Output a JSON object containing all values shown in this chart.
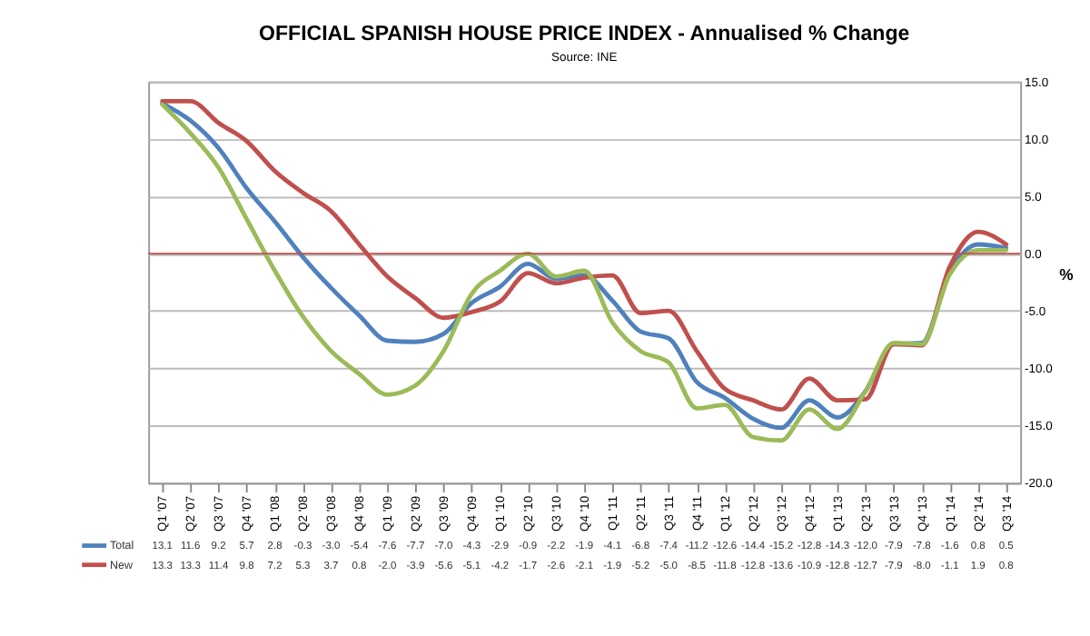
{
  "chart_data": {
    "type": "line",
    "title": "OFFICIAL SPANISH HOUSE PRICE INDEX - Annualised % Change",
    "subtitle": "Source: INE",
    "ylabel": "%",
    "categories": [
      "Q1 '07",
      "Q2 '07",
      "Q3 '07",
      "Q4 '07",
      "Q1 '08",
      "Q2 '08",
      "Q3 '08",
      "Q4 '08",
      "Q1 '09",
      "Q2 '09",
      "Q3 '09",
      "Q4 '09",
      "Q1 '10",
      "Q2 '10",
      "Q3 '10",
      "Q4 '10",
      "Q1 '11",
      "Q2 '11",
      "Q3 '11",
      "Q4 '11",
      "Q1 '12",
      "Q2 '12",
      "Q3 '12",
      "Q4 '12",
      "Q1 '13",
      "Q2 '13",
      "Q3 '13",
      "Q4 '13",
      "Q1 '14",
      "Q2 '14",
      "Q3 '14"
    ],
    "series": [
      {
        "name": "Total",
        "color": "#4f81bd",
        "values": [
          13.1,
          11.6,
          9.2,
          5.7,
          2.8,
          -0.3,
          -3.0,
          -5.4,
          -7.6,
          -7.7,
          -7.0,
          -4.3,
          -2.9,
          -0.9,
          -2.2,
          -1.9,
          -4.1,
          -6.8,
          -7.4,
          -11.2,
          -12.6,
          -14.4,
          -15.2,
          -12.8,
          -14.3,
          -12.0,
          -7.9,
          -7.8,
          -1.6,
          0.8,
          0.5
        ],
        "value_labels": [
          "13.1",
          "11.6",
          "9.2",
          "5.7",
          "2.8",
          "-0.3",
          "-3.0",
          "-5.4",
          "-7.6",
          "-7.7",
          "-7.0",
          "-4.3",
          "-2.9",
          "-0.9",
          "-2.2",
          "-1.9",
          "-4.1",
          "-6.8",
          "-7.4",
          "-11.2",
          "-12.6",
          "-14.4",
          "-15.2",
          "-12.8",
          "-14.3",
          "-12.0",
          "-7.9",
          "-7.8",
          "-1.6",
          "0.8",
          "0.5"
        ]
      },
      {
        "name": "New",
        "color": "#c0504d",
        "values": [
          13.3,
          13.3,
          11.4,
          9.8,
          7.2,
          5.3,
          3.7,
          0.8,
          -2.0,
          -3.9,
          -5.6,
          -5.1,
          -4.2,
          -1.7,
          -2.6,
          -2.1,
          -1.9,
          -5.2,
          -5.0,
          -8.5,
          -11.8,
          -12.8,
          -13.6,
          -10.9,
          -12.8,
          -12.7,
          -7.9,
          -8.0,
          -1.1,
          1.9,
          0.8
        ],
        "value_labels": [
          "13.3",
          "13.3",
          "11.4",
          "9.8",
          "7.2",
          "5.3",
          "3.7",
          "0.8",
          "-2.0",
          "-3.9",
          "-5.6",
          "-5.1",
          "-4.2",
          "-1.7",
          "-2.6",
          "-2.1",
          "-1.9",
          "-5.2",
          "-5.0",
          "-8.5",
          "-11.8",
          "-12.8",
          "-13.6",
          "-10.9",
          "-12.8",
          "-12.7",
          "-7.9",
          "-8.0",
          "-1.1",
          "1.9",
          "0.8"
        ]
      },
      {
        "color": "#9bbb59",
        "values": [
          13.0,
          10.5,
          7.5,
          3.0,
          -1.5,
          -5.5,
          -8.5,
          -10.5,
          -12.3,
          -11.5,
          -8.5,
          -3.5,
          -1.5,
          0.0,
          -2.0,
          -1.5,
          -6.0,
          -8.5,
          -9.5,
          -13.5,
          -13.2,
          -16.0,
          -16.3,
          -13.6,
          -15.3,
          -12.0,
          -7.8,
          -7.9,
          -1.8,
          0.3,
          0.3
        ]
      }
    ],
    "ylim": [
      -20,
      15
    ],
    "yticks": [
      {
        "value": -20,
        "label": "-20.0"
      },
      {
        "value": -15,
        "label": "-15.0"
      },
      {
        "value": -10,
        "label": "-10.0"
      },
      {
        "value": -5,
        "label": "-5.0"
      },
      {
        "value": 0,
        "label": "0.0"
      },
      {
        "value": 5,
        "label": "5.0"
      },
      {
        "value": 10,
        "label": "10.0"
      },
      {
        "value": 15,
        "label": "15.0"
      }
    ],
    "ref_lines": [
      {
        "axis": "y",
        "value": 0,
        "color": "#c0504d"
      }
    ],
    "grid": "y",
    "legend": "bottom left",
    "marker": "none",
    "line_style": "solid"
  }
}
